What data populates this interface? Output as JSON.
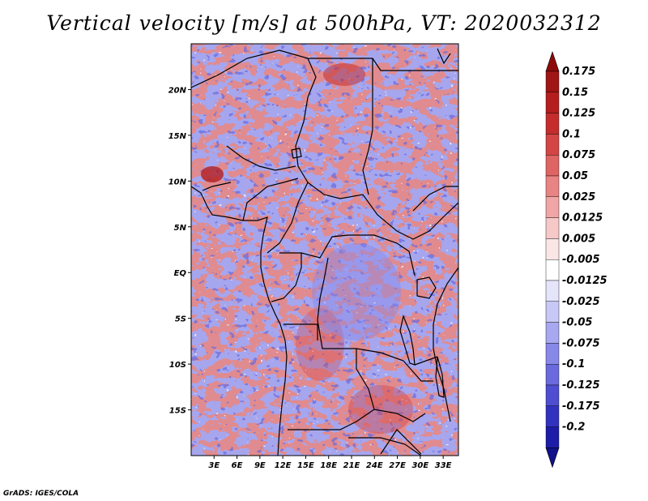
{
  "title": "Vertical velocity [m/s] at 500hPa, VT: 2020032312",
  "credit": "GrADS: IGES/COLA",
  "map": {
    "lon_range": [
      0,
      35
    ],
    "lat_range": [
      -20,
      25
    ],
    "lat_ticks": [
      {
        "value": 20,
        "label": "20N"
      },
      {
        "value": 15,
        "label": "15N"
      },
      {
        "value": 10,
        "label": "10N"
      },
      {
        "value": 5,
        "label": "5N"
      },
      {
        "value": 0,
        "label": "EQ"
      },
      {
        "value": -5,
        "label": "5S"
      },
      {
        "value": -10,
        "label": "10S"
      },
      {
        "value": -15,
        "label": "15S"
      }
    ],
    "lon_ticks": [
      {
        "value": 3,
        "label": "3E"
      },
      {
        "value": 6,
        "label": "6E"
      },
      {
        "value": 9,
        "label": "9E"
      },
      {
        "value": 12,
        "label": "12E"
      },
      {
        "value": 15,
        "label": "15E"
      },
      {
        "value": 18,
        "label": "18E"
      },
      {
        "value": 21,
        "label": "21E"
      },
      {
        "value": 24,
        "label": "24E"
      },
      {
        "value": 27,
        "label": "27E"
      },
      {
        "value": 30,
        "label": "30E"
      },
      {
        "value": 33,
        "label": "33E"
      }
    ]
  },
  "colorbar": {
    "levels": [
      {
        "label": "0.175",
        "color": "#a01515"
      },
      {
        "label": "0.15",
        "color": "#b51e1e"
      },
      {
        "label": "0.125",
        "color": "#c52d2d"
      },
      {
        "label": "0.1",
        "color": "#d44545"
      },
      {
        "label": "0.075",
        "color": "#df6464"
      },
      {
        "label": "0.05",
        "color": "#e88484"
      },
      {
        "label": "0.025",
        "color": "#f0a6a6"
      },
      {
        "label": "0.0125",
        "color": "#f6c8c8"
      },
      {
        "label": "0.005",
        "color": "#fbe6e6"
      },
      {
        "label": "-0.005",
        "color": "#ffffff"
      },
      {
        "label": "-0.0125",
        "color": "#e4e4fb"
      },
      {
        "label": "-0.025",
        "color": "#c8c8f6"
      },
      {
        "label": "-0.05",
        "color": "#a8a8f0"
      },
      {
        "label": "-0.075",
        "color": "#8888e8"
      },
      {
        "label": "-0.1",
        "color": "#6a6ade"
      },
      {
        "label": "-0.125",
        "color": "#4e4ed2"
      },
      {
        "label": "-0.175",
        "color": "#3232c0"
      },
      {
        "label": "-0.2",
        "color": "#1c1ca8"
      }
    ],
    "top_arrow_color": "#8e0a0a",
    "bottom_arrow_color": "#10108c"
  }
}
